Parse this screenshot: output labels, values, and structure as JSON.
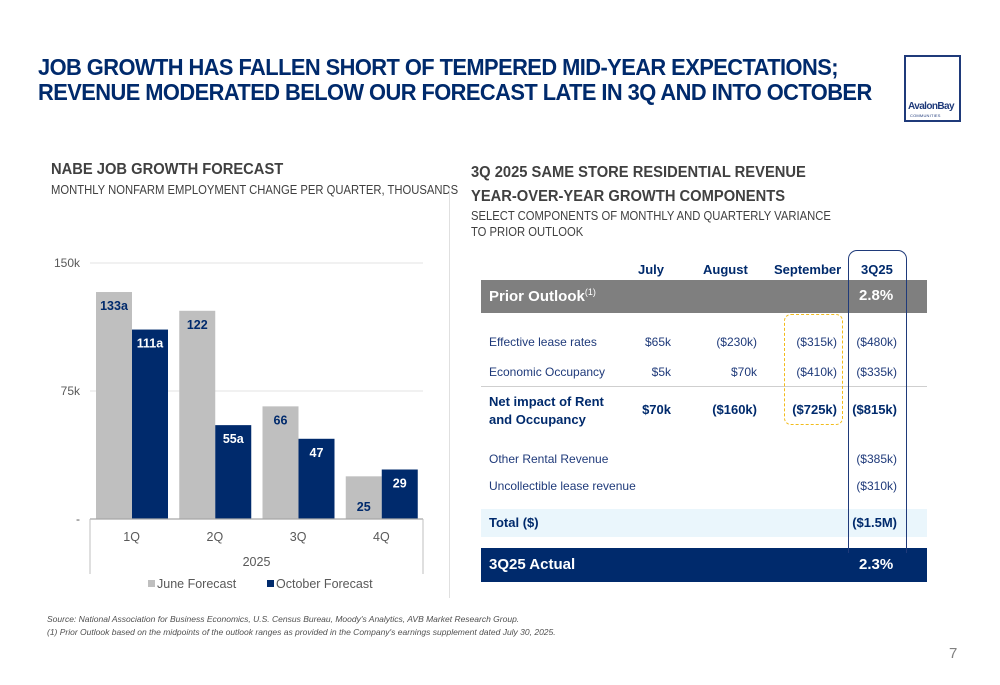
{
  "page": {
    "title_line1": "JOB GROWTH HAS FALLEN SHORT OF TEMPERED MID-YEAR EXPECTATIONS;",
    "title_line2": "REVENUE MODERATED BELOW OUR FORECAST LATE IN 3Q AND INTO OCTOBER",
    "logo_text": "AvalonBay",
    "logo_subtext": "COMMUNITIES",
    "page_number": "7"
  },
  "left_panel": {
    "heading": "NABE JOB GROWTH FORECAST",
    "subheading": "MONTHLY NONFARM EMPLOYMENT CHANGE PER QUARTER, THOUSANDS"
  },
  "chart_data": {
    "type": "bar",
    "title": "NABE JOB GROWTH FORECAST",
    "subtitle": "MONTHLY NONFARM EMPLOYMENT CHANGE PER QUARTER, THOUSANDS",
    "categories": [
      "1Q",
      "2Q",
      "3Q",
      "4Q"
    ],
    "group_label": "2025",
    "series": [
      {
        "name": "June Forecast",
        "color": "#bfbfbf",
        "values": [
          133,
          122,
          66,
          25
        ],
        "labels": [
          "133a",
          "122",
          "66",
          "25"
        ]
      },
      {
        "name": "October Forecast",
        "color": "#002a6c",
        "values": [
          111,
          55,
          47,
          29
        ],
        "labels": [
          "111a",
          "55a",
          "47",
          "29"
        ]
      }
    ],
    "yticks": [
      {
        "value": 0,
        "label": "-"
      },
      {
        "value": 75,
        "label": "75k"
      },
      {
        "value": 150,
        "label": "150k"
      }
    ],
    "ylim": [
      0,
      150
    ],
    "xlabel": "2025",
    "ylabel": "",
    "grid": true,
    "legend": "bottom"
  },
  "right_panel": {
    "heading_line1": "3Q 2025 SAME STORE RESIDENTIAL REVENUE",
    "heading_line2": "YEAR-OVER-YEAR GROWTH COMPONENTS",
    "subheading_line1": "SELECT COMPONENTS OF MONTHLY AND QUARTERLY VARIANCE",
    "subheading_line2": "TO PRIOR OUTLOOK",
    "table": {
      "columns": [
        "July",
        "August",
        "September",
        "3Q25"
      ],
      "prior_outlook": {
        "label": "Prior Outlook",
        "footnote": "(1)",
        "value": "2.8%"
      },
      "rows": [
        {
          "label": "Effective lease rates",
          "values": [
            "$65k",
            "($230k)",
            "($315k)",
            "($480k)"
          ]
        },
        {
          "label": "Economic Occupancy",
          "values": [
            "$5k",
            "$70k",
            "($410k)",
            "($335k)"
          ]
        },
        {
          "label_line1": "Net impact of Rent",
          "label_line2": "and Occupancy",
          "values": [
            "$70k",
            "($160k)",
            "($725k)",
            "($815k)"
          ]
        },
        {
          "label": "Other Rental Revenue",
          "values": [
            "",
            "",
            "",
            "($385k)"
          ]
        },
        {
          "label": "Uncollectible lease revenue",
          "values": [
            "",
            "",
            "",
            "($310k)"
          ]
        }
      ],
      "total": {
        "label": "Total ($)",
        "value": "($1.5M)"
      },
      "actual": {
        "label": "3Q25 Actual",
        "value": "2.3%"
      }
    }
  },
  "footnotes": {
    "source": "Source:  National Association for Business Economics, U.S. Census Bureau, Moody's Analytics,  AVB Market Research Group.",
    "note1": "(1)     Prior Outlook based on the midpoints of the outlook ranges as provided in the Company's earnings supplement dated July 30, 2025."
  }
}
